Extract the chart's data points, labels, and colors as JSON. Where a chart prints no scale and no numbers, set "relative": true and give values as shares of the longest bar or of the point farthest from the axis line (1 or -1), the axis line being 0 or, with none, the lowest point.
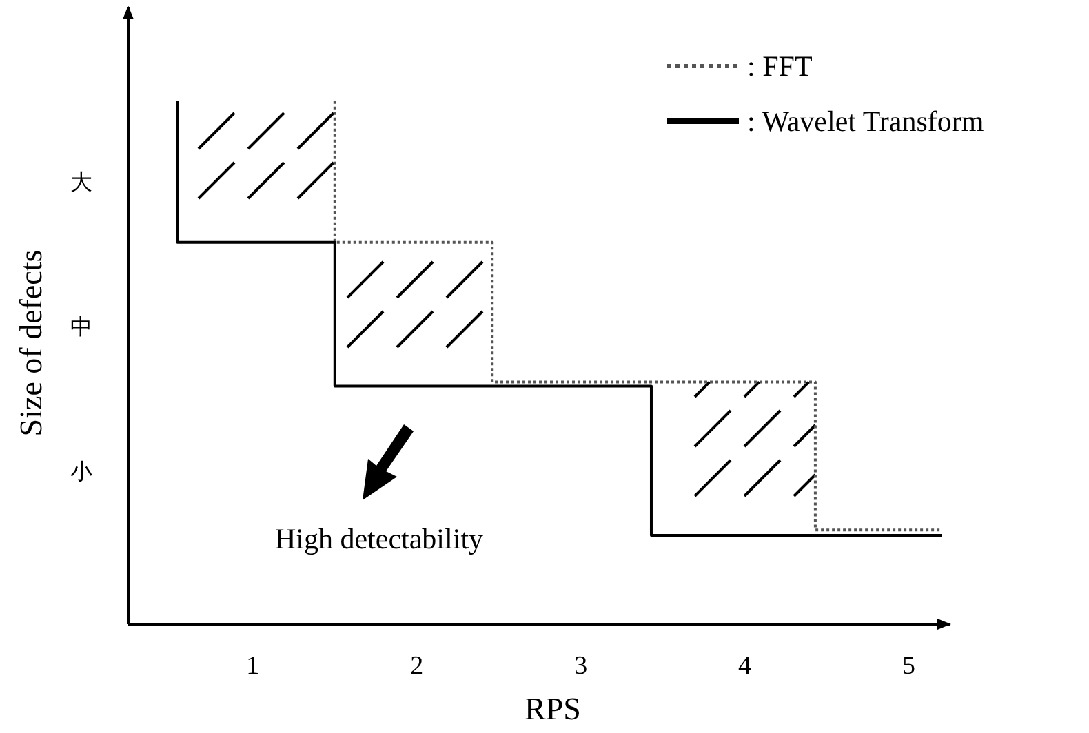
{
  "chart_data": {
    "type": "line",
    "xlabel": "RPS",
    "ylabel": "Size of defects",
    "relative": true,
    "xlim": [
      0.24,
      5.25
    ],
    "xticks": [
      1,
      2,
      3,
      4,
      5
    ],
    "series": [
      {
        "name": ": FFT",
        "color": "#555555",
        "line_style": "dotted",
        "x": [
          1.5,
          1.5,
          2.46,
          2.46,
          4.43,
          4.43,
          5.2
        ],
        "values": [
          1,
          0.73,
          0.73,
          0.463,
          0.463,
          0.18,
          0.18
        ]
      },
      {
        "name": ": Wavelet Transform",
        "color": "#000000",
        "line_style": "solid",
        "x": [
          0.54,
          0.54,
          1.5,
          1.5,
          3.43,
          3.43,
          5.2
        ],
        "values": [
          1,
          0.73,
          0.73,
          0.455,
          0.455,
          0.17,
          0.17
        ]
      }
    ],
    "legend": "top right",
    "annotations": [
      "大",
      "中",
      "小",
      "High detectability"
    ]
  }
}
